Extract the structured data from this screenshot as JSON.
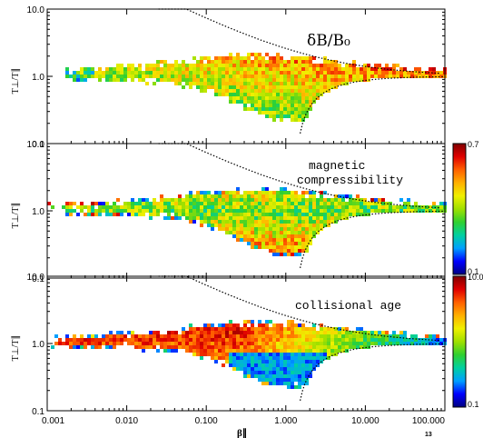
{
  "chart_data": [
    {
      "type": "heatmap",
      "panel_label": "δB/B₀",
      "ylabel": "T⊥/T∥",
      "xscale": "log",
      "yscale": "log",
      "xlim": [
        0.001,
        100
      ],
      "ylim": [
        0.1,
        10
      ],
      "yticks": [
        "10.0",
        "1.0",
        "0.1"
      ],
      "colorbar": null,
      "instability_curves": true
    },
    {
      "type": "heatmap",
      "panel_label": "magnetic compressibility",
      "ylabel": "T⊥/T∥",
      "xscale": "log",
      "yscale": "log",
      "xlim": [
        0.001,
        100
      ],
      "ylim": [
        0.1,
        10
      ],
      "yticks": [
        "10.0",
        "1.0",
        "0.1"
      ],
      "colorbar": {
        "min_label": "0.1",
        "max_label": "0.7",
        "range": [
          0.1,
          0.7
        ]
      },
      "instability_curves": true
    },
    {
      "type": "heatmap",
      "panel_label": "collisional age",
      "ylabel": "T⊥/T∥",
      "xlabel": "β∥",
      "xscale": "log",
      "yscale": "log",
      "xlim": [
        0.001,
        100
      ],
      "ylim": [
        0.1,
        10
      ],
      "yticks": [
        "10.0",
        "1.0",
        "0.1"
      ],
      "xticks": [
        "0.001",
        "0.010",
        "0.100",
        "1.000",
        "10.000",
        "100.000"
      ],
      "colorbar": {
        "min_label": "0.1",
        "max_label": "10.0",
        "range": [
          0.1,
          10
        ],
        "scale": "log"
      },
      "instability_curves": true
    }
  ],
  "page_number": "13",
  "colors": {
    "colormap": [
      "#000080",
      "#0000ff",
      "#00a0ff",
      "#00d0a0",
      "#30d030",
      "#a0e000",
      "#f0f000",
      "#ffb000",
      "#ff6000",
      "#e00000",
      "#800000"
    ],
    "curve": "#000000"
  }
}
